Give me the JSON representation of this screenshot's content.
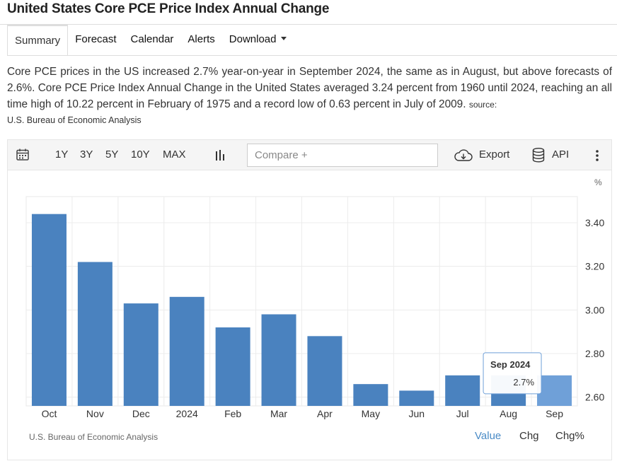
{
  "page": {
    "title": "United States Core PCE Price Index Annual Change"
  },
  "tabs": [
    {
      "label": "Summary"
    },
    {
      "label": "Forecast"
    },
    {
      "label": "Calendar"
    },
    {
      "label": "Alerts"
    },
    {
      "label": "Download"
    }
  ],
  "description": {
    "text": "Core PCE prices in the US increased 2.7% year-on-year in September 2024, the same as in August, but above forecasts of 2.6%. Core PCE Price Index Annual Change in the United States averaged 3.24 percent from 1960 until 2024, reaching an all time high of 10.22 percent in February of 1975 and a record low of 0.63 percent in July of 2009.",
    "source_label": "source:",
    "source_name": "U.S. Bureau of Economic Analysis"
  },
  "toolbar": {
    "ranges": [
      "1Y",
      "3Y",
      "5Y",
      "10Y",
      "MAX"
    ],
    "compare_placeholder": "Compare +",
    "export_label": "Export",
    "api_label": "API"
  },
  "chart_data": {
    "type": "bar",
    "unit": "%",
    "categories": [
      "Oct",
      "Nov",
      "Dec",
      "2024",
      "Feb",
      "Mar",
      "Apr",
      "May",
      "Jun",
      "Jul",
      "Aug",
      "Sep"
    ],
    "values": [
      3.44,
      3.22,
      3.03,
      3.06,
      2.92,
      2.98,
      2.88,
      2.66,
      2.63,
      2.7,
      2.7,
      2.7
    ],
    "yticks": [
      2.6,
      2.8,
      3.0,
      3.2,
      3.4
    ],
    "ytick_labels": [
      "2.60",
      "2.80",
      "3.00",
      "3.20",
      "3.40"
    ],
    "ylim": [
      2.56,
      3.52
    ],
    "bar_color": "#4a82bf",
    "highlight_color": "#6fa0d8",
    "highlight_index": 11,
    "grid": true,
    "tooltip": {
      "title": "Sep 2024",
      "value": "2.7%"
    },
    "source": "U.S. Bureau of Economic Analysis"
  },
  "value_tabs": [
    {
      "label": "Value"
    },
    {
      "label": "Chg"
    },
    {
      "label": "Chg%"
    }
  ]
}
